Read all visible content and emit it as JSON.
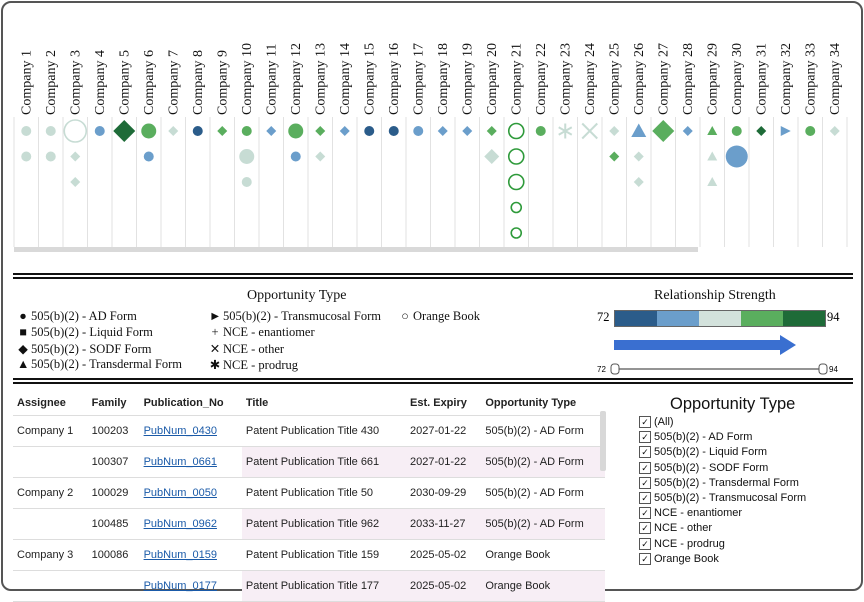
{
  "companies": [
    "Company 1",
    "Company 2",
    "Company 3",
    "Company 4",
    "Company 5",
    "Company 6",
    "Company 7",
    "Company 8",
    "Company 9",
    "Company 10",
    "Company 11",
    "Company 12",
    "Company 13",
    "Company 14",
    "Company 15",
    "Company 16",
    "Company 17",
    "Company 18",
    "Company 19",
    "Company 20",
    "Company 21",
    "Company 22",
    "Company 23",
    "Company 24",
    "Company 25",
    "Company 26",
    "Company 27",
    "Company 28",
    "Company 29",
    "Company 30",
    "Company 31",
    "Company 32",
    "Company 33",
    "Company 34"
  ],
  "colors": {
    "c72": "#2b5c8a",
    "c78": "#6b9ecb",
    "c84": "#d3e2dc",
    "c89": "#5aae5e",
    "c94": "#1e6b38",
    "outline": "#2e9a3a",
    "light": "#c7dcd4",
    "arrow": "#3a6fd0"
  },
  "marks": [
    {
      "col": 1,
      "row": 1,
      "shape": "circle",
      "size": "s",
      "color": "light"
    },
    {
      "col": 1,
      "row": 2,
      "shape": "circle",
      "size": "s",
      "color": "light"
    },
    {
      "col": 2,
      "row": 1,
      "shape": "circle",
      "size": "s",
      "color": "light"
    },
    {
      "col": 2,
      "row": 2,
      "shape": "circle",
      "size": "s",
      "color": "light"
    },
    {
      "col": 3,
      "row": 1,
      "shape": "ring",
      "size": "l",
      "color": "light"
    },
    {
      "col": 3,
      "row": 2,
      "shape": "diamond",
      "size": "s",
      "color": "light"
    },
    {
      "col": 3,
      "row": 3,
      "shape": "diamond",
      "size": "s",
      "color": "light"
    },
    {
      "col": 4,
      "row": 1,
      "shape": "circle",
      "size": "s",
      "color": "c78"
    },
    {
      "col": 5,
      "row": 1,
      "shape": "diamond",
      "size": "l",
      "color": "c94"
    },
    {
      "col": 6,
      "row": 1,
      "shape": "circle",
      "size": "m",
      "color": "c89"
    },
    {
      "col": 6,
      "row": 2,
      "shape": "circle",
      "size": "s",
      "color": "c78"
    },
    {
      "col": 7,
      "row": 1,
      "shape": "diamond",
      "size": "s",
      "color": "light"
    },
    {
      "col": 8,
      "row": 1,
      "shape": "circle",
      "size": "s",
      "color": "c72"
    },
    {
      "col": 9,
      "row": 1,
      "shape": "diamond",
      "size": "s",
      "color": "c89"
    },
    {
      "col": 10,
      "row": 1,
      "shape": "circle",
      "size": "s",
      "color": "c89"
    },
    {
      "col": 10,
      "row": 2,
      "shape": "circle",
      "size": "m",
      "color": "light"
    },
    {
      "col": 10,
      "row": 3,
      "shape": "circle",
      "size": "s",
      "color": "light"
    },
    {
      "col": 11,
      "row": 1,
      "shape": "diamond",
      "size": "s",
      "color": "c78"
    },
    {
      "col": 12,
      "row": 1,
      "shape": "circle",
      "size": "m",
      "color": "c89"
    },
    {
      "col": 12,
      "row": 2,
      "shape": "circle",
      "size": "s",
      "color": "c78"
    },
    {
      "col": 13,
      "row": 1,
      "shape": "diamond",
      "size": "s",
      "color": "c89"
    },
    {
      "col": 13,
      "row": 2,
      "shape": "diamond",
      "size": "s",
      "color": "light"
    },
    {
      "col": 14,
      "row": 1,
      "shape": "diamond",
      "size": "s",
      "color": "c78"
    },
    {
      "col": 15,
      "row": 1,
      "shape": "circle",
      "size": "s",
      "color": "c72"
    },
    {
      "col": 16,
      "row": 1,
      "shape": "circle",
      "size": "s",
      "color": "c72"
    },
    {
      "col": 17,
      "row": 1,
      "shape": "circle",
      "size": "s",
      "color": "c78"
    },
    {
      "col": 18,
      "row": 1,
      "shape": "diamond",
      "size": "s",
      "color": "c78"
    },
    {
      "col": 19,
      "row": 1,
      "shape": "diamond",
      "size": "s",
      "color": "c78"
    },
    {
      "col": 20,
      "row": 1,
      "shape": "diamond",
      "size": "s",
      "color": "c89"
    },
    {
      "col": 20,
      "row": 2,
      "shape": "diamond",
      "size": "m",
      "color": "light"
    },
    {
      "col": 21,
      "row": 1,
      "shape": "ring",
      "size": "m",
      "color": "outline"
    },
    {
      "col": 21,
      "row": 2,
      "shape": "ring",
      "size": "m",
      "color": "outline"
    },
    {
      "col": 21,
      "row": 3,
      "shape": "ring",
      "size": "m",
      "color": "outline"
    },
    {
      "col": 21,
      "row": 4,
      "shape": "ring",
      "size": "s",
      "color": "outline"
    },
    {
      "col": 21,
      "row": 5,
      "shape": "ring",
      "size": "s",
      "color": "outline"
    },
    {
      "col": 22,
      "row": 1,
      "shape": "circle",
      "size": "s",
      "color": "c89"
    },
    {
      "col": 23,
      "row": 1,
      "shape": "asterisk",
      "size": "m",
      "color": "light"
    },
    {
      "col": 24,
      "row": 1,
      "shape": "cross",
      "size": "m",
      "color": "light"
    },
    {
      "col": 25,
      "row": 1,
      "shape": "diamond",
      "size": "s",
      "color": "light"
    },
    {
      "col": 25,
      "row": 2,
      "shape": "diamond",
      "size": "s",
      "color": "c89"
    },
    {
      "col": 26,
      "row": 1,
      "shape": "triangle",
      "size": "m",
      "color": "c78"
    },
    {
      "col": 26,
      "row": 2,
      "shape": "diamond",
      "size": "s",
      "color": "light"
    },
    {
      "col": 26,
      "row": 3,
      "shape": "diamond",
      "size": "s",
      "color": "light"
    },
    {
      "col": 27,
      "row": 1,
      "shape": "diamond",
      "size": "l",
      "color": "c89"
    },
    {
      "col": 28,
      "row": 1,
      "shape": "diamond",
      "size": "s",
      "color": "c78"
    },
    {
      "col": 29,
      "row": 1,
      "shape": "triangle",
      "size": "s",
      "color": "c89"
    },
    {
      "col": 29,
      "row": 2,
      "shape": "triangle",
      "size": "s",
      "color": "light"
    },
    {
      "col": 29,
      "row": 3,
      "shape": "triangle",
      "size": "s",
      "color": "light"
    },
    {
      "col": 30,
      "row": 1,
      "shape": "circle",
      "size": "s",
      "color": "c89"
    },
    {
      "col": 30,
      "row": 2,
      "shape": "circle",
      "size": "l",
      "color": "c78"
    },
    {
      "col": 31,
      "row": 1,
      "shape": "diamond",
      "size": "s",
      "color": "c94"
    },
    {
      "col": 32,
      "row": 1,
      "shape": "tri-right",
      "size": "s",
      "color": "c78"
    },
    {
      "col": 33,
      "row": 1,
      "shape": "circle",
      "size": "s",
      "color": "c89"
    },
    {
      "col": 34,
      "row": 1,
      "shape": "diamond",
      "size": "s",
      "color": "light"
    }
  ],
  "legend": {
    "title": "Opportunity Type",
    "items": [
      {
        "symbol": "●",
        "label": "505(b)(2) - AD Form"
      },
      {
        "symbol": "■",
        "label": "505(b)(2) - Liquid Form"
      },
      {
        "symbol": "◆",
        "label": "505(b)(2) - SODF Form"
      },
      {
        "symbol": "▲",
        "label": "505(b)(2) - Transdermal Form"
      },
      {
        "symbol": "►",
        "label": "505(b)(2) - Transmucosal Form"
      },
      {
        "symbol": "+",
        "label": "NCE - enantiomer"
      },
      {
        "symbol": "✕",
        "label": "NCE - other"
      },
      {
        "symbol": "✱",
        "label": "NCE - prodrug"
      },
      {
        "symbol": "○",
        "label": "Orange Book"
      }
    ]
  },
  "relationship": {
    "title": "Relationship Strength",
    "min": "72",
    "max": "94",
    "gradient": [
      "#2b5c8a",
      "#6b9ecb",
      "#d3e2dc",
      "#5aae5e",
      "#1e6b38"
    ],
    "slider_min": "72",
    "slider_max": "94"
  },
  "table": {
    "headers": [
      "Assignee",
      "Family",
      "Publication_No",
      "Title",
      "Est. Expiry",
      "Opportunity Type"
    ],
    "rows": [
      {
        "assignee": "Company 1",
        "family": "100203",
        "pub": "PubNum_0430",
        "title": "Patent Publication Title 430",
        "expiry": "2027-01-22",
        "type": "505(b)(2) - AD Form"
      },
      {
        "assignee": "",
        "family": "100307",
        "pub": "PubNum_0661",
        "title": "Patent Publication Title 661",
        "expiry": "2027-01-22",
        "type": "505(b)(2) - AD Form"
      },
      {
        "assignee": "Company 2",
        "family": "100029",
        "pub": "PubNum_0050",
        "title": "Patent Publication Title 50",
        "expiry": "2030-09-29",
        "type": "505(b)(2) - AD Form"
      },
      {
        "assignee": "",
        "family": "100485",
        "pub": "PubNum_0962",
        "title": "Patent Publication Title 962",
        "expiry": "2033-11-27",
        "type": "505(b)(2) - AD Form"
      },
      {
        "assignee": "Company 3",
        "family": "100086",
        "pub": "PubNum_0159",
        "title": "Patent Publication Title 159",
        "expiry": "2025-05-02",
        "type": "Orange Book"
      },
      {
        "assignee": "",
        "family": "",
        "pub": "PubNum_0177",
        "title": "Patent Publication Title 177",
        "expiry": "2025-05-02",
        "type": "Orange Book"
      }
    ]
  },
  "filter": {
    "title": "Opportunity Type",
    "items": [
      {
        "label": "(All)",
        "checked": true
      },
      {
        "label": "505(b)(2) - AD Form",
        "checked": true
      },
      {
        "label": "505(b)(2) - Liquid Form",
        "checked": true
      },
      {
        "label": "505(b)(2) - SODF Form",
        "checked": true
      },
      {
        "label": "505(b)(2) - Transdermal Form",
        "checked": true
      },
      {
        "label": "505(b)(2) - Transmucosal Form",
        "checked": true
      },
      {
        "label": "NCE - enantiomer",
        "checked": true
      },
      {
        "label": "NCE - other",
        "checked": true
      },
      {
        "label": "NCE - prodrug",
        "checked": true
      },
      {
        "label": "Orange Book",
        "checked": true
      }
    ]
  }
}
